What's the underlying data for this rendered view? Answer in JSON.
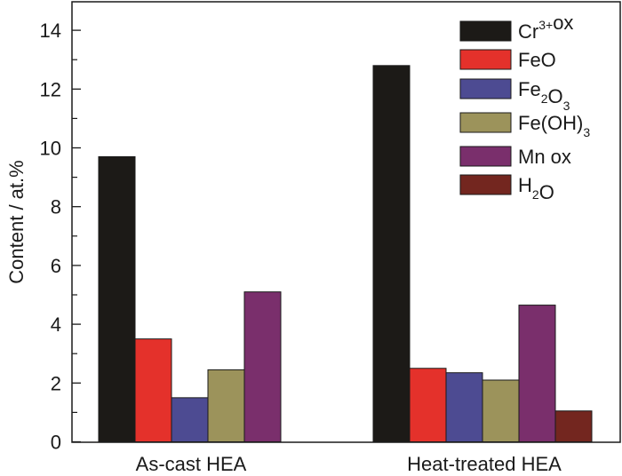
{
  "chart_data": {
    "type": "bar",
    "title": "",
    "xlabel": "",
    "ylabel": "Content / at.%",
    "ylim": [
      0,
      15
    ],
    "yticks": [
      0,
      2,
      4,
      6,
      8,
      10,
      12,
      14
    ],
    "minor_yticks": [
      1,
      3,
      5,
      7,
      9,
      11,
      13
    ],
    "categories": [
      "As-cast HEA",
      "Heat-treated HEA"
    ],
    "grid": false,
    "legend_position": "top-right",
    "series": [
      {
        "name": "Cr3+ox",
        "label_parts": [
          {
            "t": "Cr"
          },
          {
            "t": "3+",
            "sup": true
          },
          {
            "t": "ox"
          }
        ],
        "color": "#1c1a17",
        "values": [
          9.7,
          12.8
        ]
      },
      {
        "name": "FeO",
        "label_parts": [
          {
            "t": "FeO"
          }
        ],
        "color": "#e4312b",
        "values": [
          3.5,
          2.5
        ]
      },
      {
        "name": "Fe2O3",
        "label_parts": [
          {
            "t": "Fe"
          },
          {
            "t": "2",
            "sub": true
          },
          {
            "t": "O"
          },
          {
            "t": "3",
            "sub": true
          }
        ],
        "color": "#4d4b92",
        "values": [
          1.5,
          2.35
        ]
      },
      {
        "name": "Fe(OH)3",
        "label_parts": [
          {
            "t": "Fe(OH)"
          },
          {
            "t": "3",
            "sub": true
          }
        ],
        "color": "#9c935b",
        "values": [
          2.45,
          2.1
        ]
      },
      {
        "name": "Mn ox",
        "label_parts": [
          {
            "t": "Mn ox"
          }
        ],
        "color": "#7a2f6c",
        "values": [
          5.1,
          4.65
        ]
      },
      {
        "name": "H2O",
        "label_parts": [
          {
            "t": "H"
          },
          {
            "t": "2",
            "sub": true
          },
          {
            "t": "O"
          }
        ],
        "color": "#73261f",
        "values": [
          null,
          1.05
        ]
      }
    ]
  }
}
